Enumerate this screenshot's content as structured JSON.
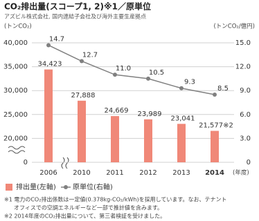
{
  "chart_data": {
    "type": "bar-line",
    "title": "CO₂排出量(スコープ1, 2)※1／原単位",
    "subtitle": "アズビル株式会社, 国内連結子会社及び海外主要生産拠点",
    "y_axis_label": "(トンCO₂)",
    "y2_axis_label": "(トンCO₂/億円)",
    "x_axis_label": "(年度)",
    "categories": [
      "2006",
      "2010",
      "2011",
      "2012",
      "2013",
      "2014"
    ],
    "series": [
      {
        "name": "排出量(左軸)",
        "type": "bar",
        "color": "#f08878",
        "values": [
          34423,
          27888,
          24669,
          23989,
          23041,
          21577
        ],
        "value_labels": [
          "34,423",
          "27,888",
          "24,669",
          "23,989",
          "23,041",
          "21,577※2"
        ]
      },
      {
        "name": "原単位(右軸)",
        "type": "line",
        "axis": "y2",
        "color": "#808080",
        "values": [
          14.7,
          12.7,
          11.0,
          10.5,
          9.3,
          8.5
        ],
        "value_labels": [
          "14.7",
          "12.7",
          "11.0",
          "10.5",
          "9.3",
          "8.5"
        ]
      }
    ],
    "ylim": [
      0,
      40000
    ],
    "ybreak": [
      0,
      15000
    ],
    "yticks": [
      0,
      {
        "value": 20000,
        "label": "20,000"
      },
      {
        "value": 25000,
        "label": "25,000"
      },
      {
        "value": 30000,
        "label": "30,000"
      },
      {
        "value": 35000,
        "label": "35,000"
      },
      {
        "value": 40000,
        "label": "40,000"
      }
    ],
    "y2lim": [
      0,
      15
    ],
    "y2ticks": [
      0,
      {
        "value": 3,
        "label": "3.0"
      },
      {
        "value": 6,
        "label": "6.0"
      },
      {
        "value": 9,
        "label": "9.0"
      },
      {
        "value": 12,
        "label": "12.0"
      },
      {
        "value": 15,
        "label": "15.0"
      }
    ],
    "grid": true,
    "footnotes": [
      "※1 電力のCO₂排出係数は一定値(0.378kg-CO₂/kWh)を採用しています。なお、テナント",
      "オフィスでの空調エネルギーなど一部で推計値を含みます。",
      "※2 2014年度のCO₂排出量について、第三者検証を受けました。"
    ]
  }
}
